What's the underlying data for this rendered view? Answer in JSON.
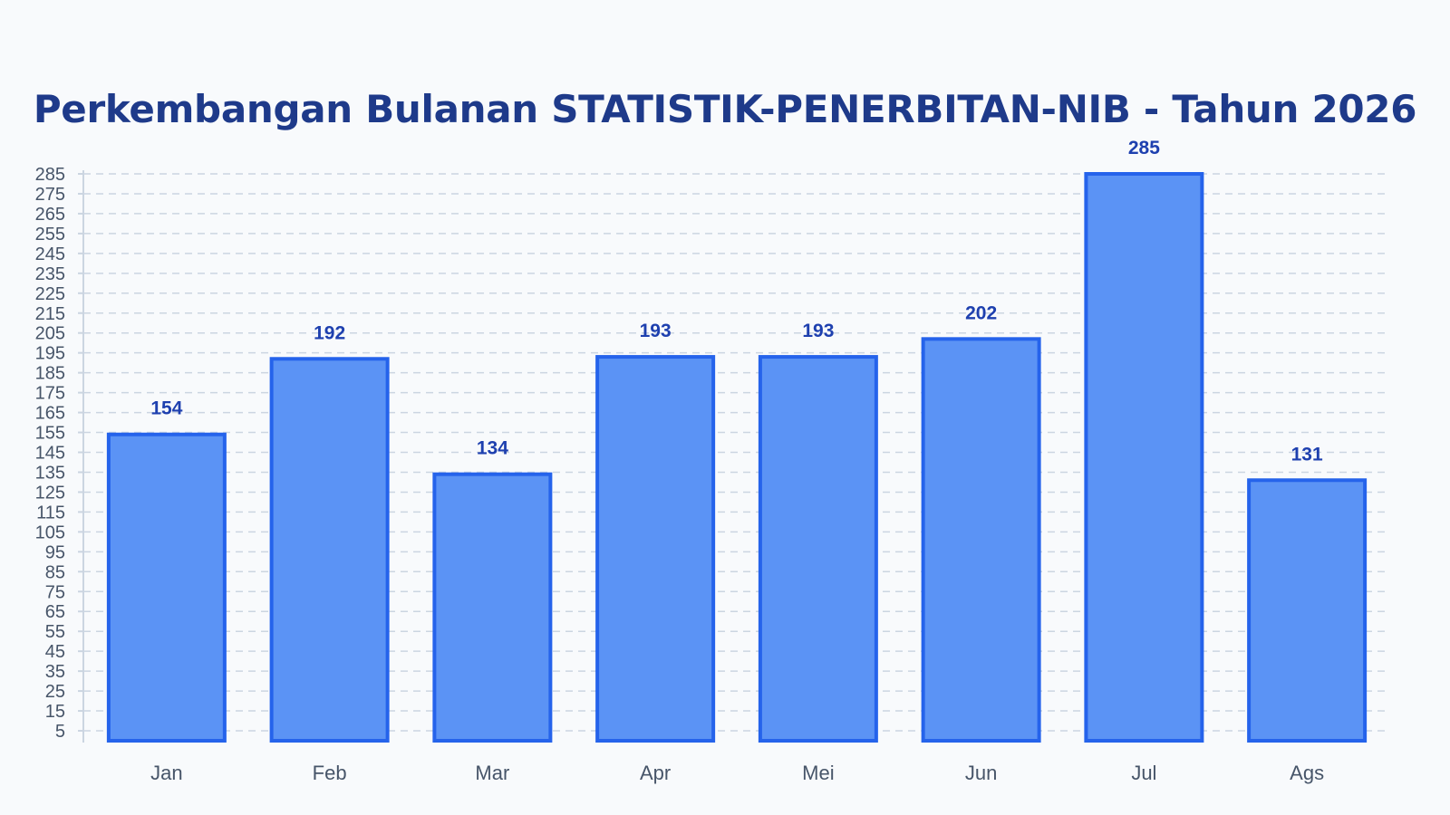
{
  "chart_data": {
    "type": "bar",
    "title": "Perkembangan Bulanan STATISTIK-PENERBITAN-NIB - Tahun 2026",
    "categories": [
      "Jan",
      "Feb",
      "Mar",
      "Apr",
      "Mei",
      "Jun",
      "Jul",
      "Ags"
    ],
    "values": [
      154,
      192,
      134,
      193,
      193,
      202,
      285,
      131
    ],
    "yticks": [
      5,
      15,
      25,
      35,
      45,
      55,
      65,
      75,
      85,
      95,
      105,
      115,
      125,
      135,
      145,
      155,
      165,
      175,
      185,
      195,
      205,
      215,
      225,
      235,
      245,
      255,
      265,
      275,
      285
    ],
    "ylim": [
      0,
      285
    ],
    "xlabel": "",
    "ylabel": "",
    "grid": true,
    "data_labels": true,
    "colors": {
      "bar_fill": "#5b93f5",
      "bar_stroke": "#2563eb",
      "title": "#1e3a8a",
      "data_label": "#1e40af"
    }
  }
}
